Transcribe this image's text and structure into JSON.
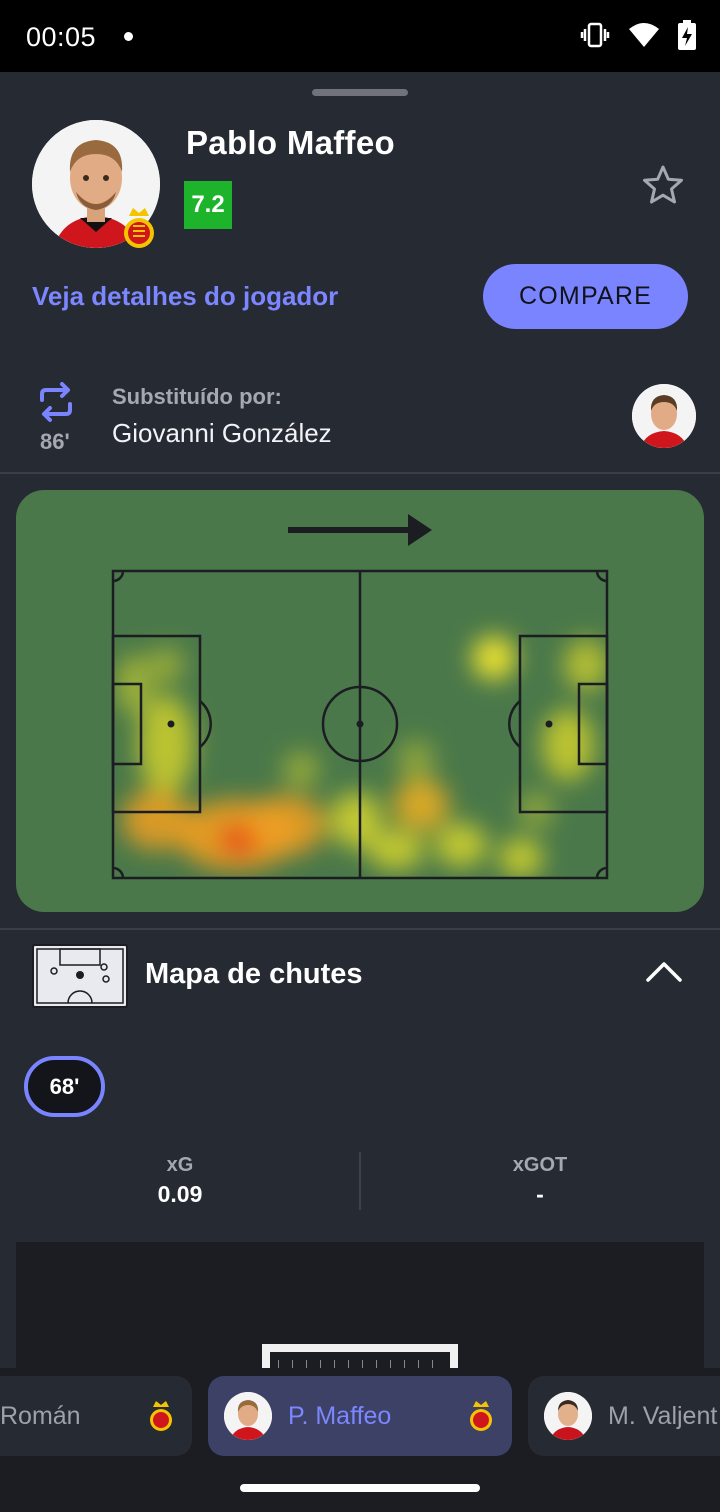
{
  "status_bar": {
    "time": "00:05",
    "icons": [
      "vibrate-icon",
      "wifi-icon",
      "battery-charging-icon"
    ]
  },
  "player": {
    "name": "Pablo Maffeo",
    "rating": "7.2",
    "rating_color": "#1db32b"
  },
  "actions": {
    "details_link": "Veja detalhes do jogador",
    "compare_label": "COMPARE"
  },
  "substitution": {
    "minute": "86'",
    "label": "Substituído por:",
    "replacement": "Giovanni González"
  },
  "heatmap": {
    "attack_direction": "right"
  },
  "shot_map": {
    "title": "Mapa de chutes",
    "selected_minute": "68'",
    "xg": {
      "label": "xG",
      "value": "0.09"
    },
    "xgot": {
      "label": "xGOT",
      "value": "-"
    }
  },
  "player_tabs": [
    {
      "name": "Román",
      "active": false
    },
    {
      "name": "P. Maffeo",
      "active": true
    },
    {
      "name": "M. Valjent",
      "active": false
    }
  ],
  "colors": {
    "accent": "#7a84ff",
    "background": "#262a33",
    "pitch": "#4a784a",
    "team": "#d0161d"
  }
}
